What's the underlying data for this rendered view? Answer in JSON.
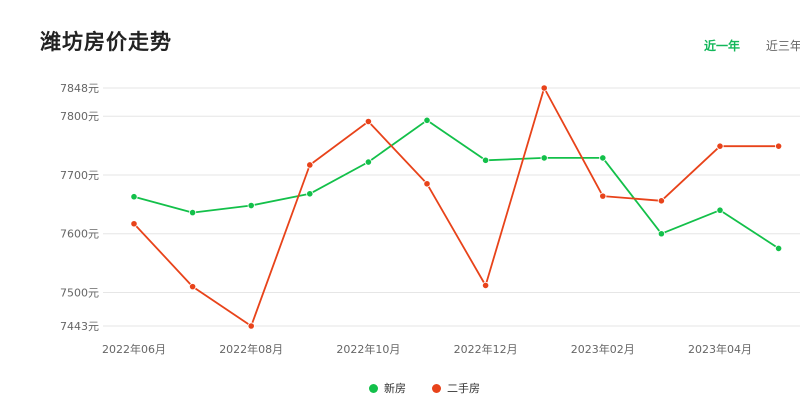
{
  "page": {
    "title": "潍坊房价走势",
    "tabs": [
      {
        "label": "近一年",
        "active": true
      },
      {
        "label": "近三年",
        "active": false
      }
    ]
  },
  "chart_data": {
    "type": "line",
    "x": [
      "2022年06月",
      "2022年07月",
      "2022年08月",
      "2022年09月",
      "2022年10月",
      "2022年11月",
      "2022年12月",
      "2023年01月",
      "2023年02月",
      "2023年03月",
      "2023年04月",
      "2023年05月"
    ],
    "xtick_labels": [
      "2022年06月",
      "2022年08月",
      "2022年10月",
      "2022年12月",
      "2023年02月",
      "2023年04月"
    ],
    "ytick_labels": [
      "7848元",
      "7800元",
      "7700元",
      "7600元",
      "7500元",
      "7443元"
    ],
    "yticks": [
      7848,
      7800,
      7700,
      7600,
      7500,
      7443
    ],
    "ylim": [
      7443,
      7848
    ],
    "grid": true,
    "legend_position": "bottom",
    "series": [
      {
        "name": "新房",
        "color": "#13c04a",
        "values": [
          7663,
          7636,
          7648,
          7668,
          7722,
          7793,
          7725,
          7729,
          7729,
          7600,
          7640,
          7575
        ]
      },
      {
        "name": "二手房",
        "color": "#e8431a",
        "values": [
          7617,
          7510,
          7443,
          7717,
          7791,
          7685,
          7512,
          7848,
          7664,
          7656,
          7749,
          7749
        ]
      }
    ]
  }
}
